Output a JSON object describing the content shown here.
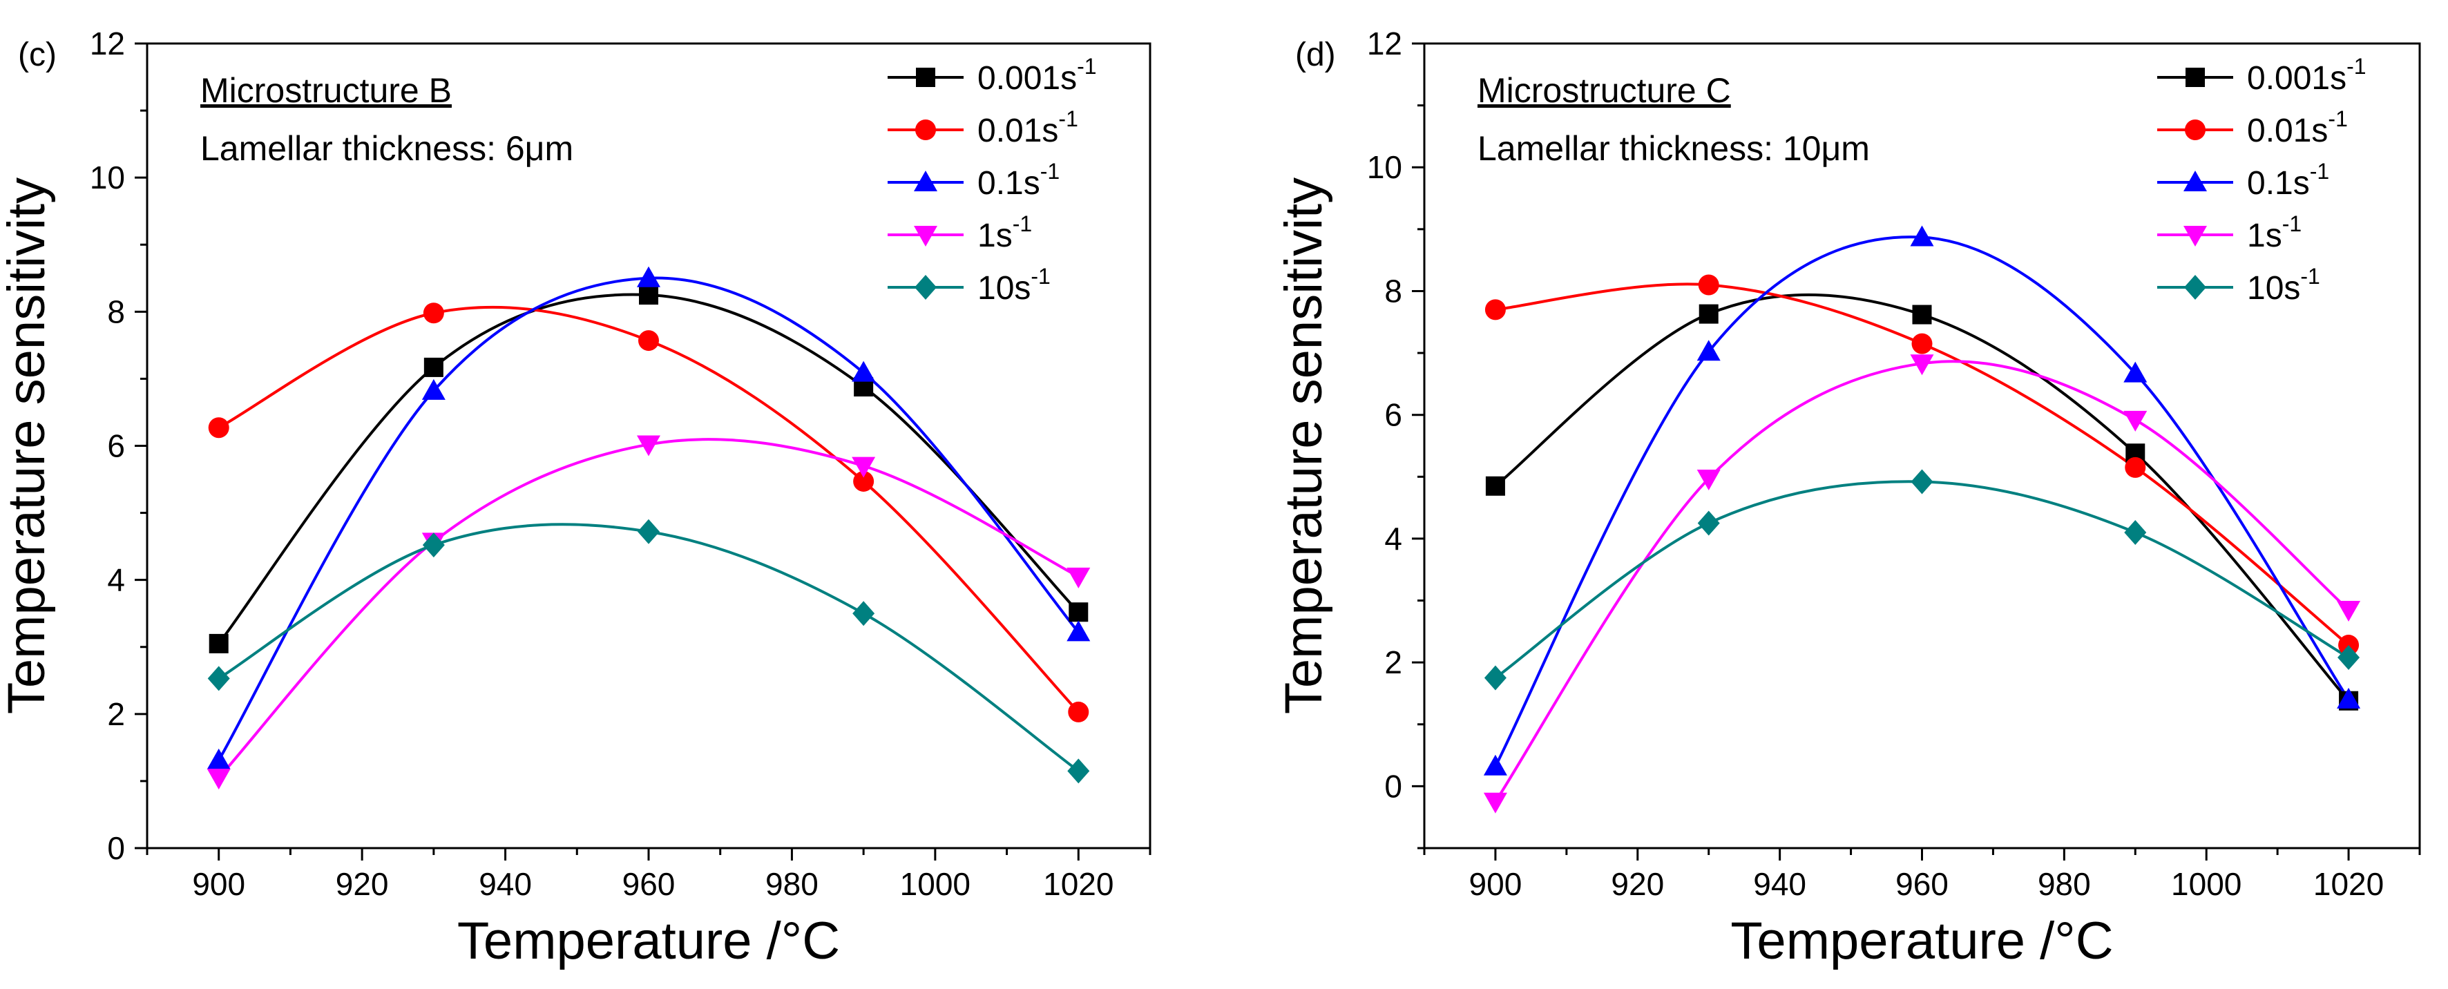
{
  "chart_data": [
    {
      "panel_label": "(c)",
      "type": "line",
      "title": "Microstructure B",
      "subtitle": "Lamellar thickness: 6μm",
      "xlabel": "Temperature /°C",
      "ylabel": "Temperature sensitivity",
      "xlim": [
        890,
        1030
      ],
      "ylim": [
        0,
        12
      ],
      "xticks": [
        900,
        920,
        940,
        960,
        980,
        1000,
        1020
      ],
      "yticks": [
        0,
        2,
        4,
        6,
        8,
        10,
        12
      ],
      "legend_position": "top-right",
      "x": [
        900,
        930,
        960,
        990,
        1020
      ],
      "series": [
        {
          "name": "0.001s",
          "sup": "-1",
          "color": "#000000",
          "marker": "square",
          "values": [
            3.05,
            7.17,
            8.25,
            6.88,
            3.52
          ]
        },
        {
          "name": "0.01s",
          "sup": "-1",
          "color": "#ff0000",
          "marker": "circle",
          "values": [
            6.27,
            7.98,
            7.57,
            5.47,
            2.03
          ]
        },
        {
          "name": "0.1s",
          "sup": "-1",
          "color": "#0000ff",
          "marker": "triangle-up",
          "values": [
            1.31,
            6.82,
            8.5,
            7.09,
            3.22
          ]
        },
        {
          "name": "1s",
          "sup": "-1",
          "color": "#ff00ff",
          "marker": "triangle-down",
          "values": [
            1.05,
            4.57,
            6.02,
            5.7,
            4.05
          ]
        },
        {
          "name": "10s",
          "sup": "-1",
          "color": "#008080",
          "marker": "diamond",
          "values": [
            2.53,
            4.52,
            4.72,
            3.5,
            1.15
          ]
        }
      ]
    },
    {
      "panel_label": "(d)",
      "type": "line",
      "title": "Microstructure C",
      "subtitle": "Lamellar thickness: 10μm",
      "xlabel": "Temperature /°C",
      "ylabel": "Temperature sensitivity",
      "xlim": [
        890,
        1030
      ],
      "ylim": [
        -1,
        12
      ],
      "xticks": [
        900,
        920,
        940,
        960,
        980,
        1000,
        1020
      ],
      "yticks": [
        0,
        2,
        4,
        6,
        8,
        10,
        12
      ],
      "legend_position": "top-right",
      "x": [
        900,
        930,
        960,
        990,
        1020
      ],
      "series": [
        {
          "name": "0.001s",
          "sup": "-1",
          "color": "#000000",
          "marker": "square",
          "values": [
            4.85,
            7.63,
            7.62,
            5.38,
            1.38
          ]
        },
        {
          "name": "0.01s",
          "sup": "-1",
          "color": "#ff0000",
          "marker": "circle",
          "values": [
            7.7,
            8.1,
            7.15,
            5.15,
            2.28
          ]
        },
        {
          "name": "0.1s",
          "sup": "-1",
          "color": "#0000ff",
          "marker": "triangle-up",
          "values": [
            0.32,
            7.02,
            8.87,
            6.67,
            1.4
          ]
        },
        {
          "name": "1s",
          "sup": "-1",
          "color": "#ff00ff",
          "marker": "triangle-down",
          "values": [
            -0.25,
            4.97,
            6.83,
            5.92,
            2.85
          ]
        },
        {
          "name": "10s",
          "sup": "-1",
          "color": "#008080",
          "marker": "diamond",
          "values": [
            1.75,
            4.25,
            4.92,
            4.1,
            2.08
          ]
        }
      ]
    }
  ]
}
